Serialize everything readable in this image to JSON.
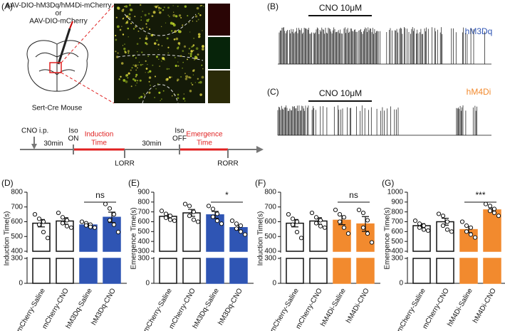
{
  "panel_a": {
    "label": "(A)",
    "virus_line1": "AAV-DIO-hM3Dq/hM4Di-mCherry",
    "virus_or": "or",
    "virus_line2": "AAV-DIO-mCherry",
    "mouse": "Sert-Cre Mouse",
    "timeline": {
      "cno": "CNO i.p.",
      "gap1": "30min",
      "iso_on_1": "Iso",
      "iso_on_2": "ON",
      "induction_1": "Induction",
      "induction_2": "Time",
      "lorr": "LORR",
      "gap2": "30min",
      "iso_off_1": "Iso",
      "iso_off_2": "OFF",
      "emergence_1": "Emergence",
      "emergence_2": "Time",
      "rorr": "RORR"
    }
  },
  "panel_b": {
    "label": "(B)",
    "drug": "CNO 10μM",
    "construct": "hM3Dq"
  },
  "panel_c": {
    "label": "(C)",
    "drug": "CNO 10μM",
    "construct": "hM4Di"
  },
  "chart_data": [
    {
      "type": "bar",
      "panel": "(D)",
      "ylabel": "Induction Time(s)",
      "categories": [
        "mCherry-Saline",
        "mCherry-CNO",
        "hM3Dq-Saline",
        "hM3Dq-CNO"
      ],
      "values": [
        590,
        605,
        578,
        630
      ],
      "errors": [
        25,
        22,
        10,
        35
      ],
      "colors": [
        "#ffffff",
        "#ffffff",
        "#2f55b4",
        "#2f55b4"
      ],
      "points": [
        [
          650,
          620,
          600,
          580,
          530,
          490
        ],
        [
          660,
          630,
          610,
          590,
          570,
          560
        ],
        [
          600,
          590,
          580,
          575,
          565,
          560
        ],
        [
          720,
          690,
          650,
          610,
          580,
          530
        ]
      ],
      "ylim": [
        400,
        800
      ],
      "yticks": [
        400,
        500,
        600,
        700,
        800
      ],
      "ylim_lower": [
        0,
        300
      ],
      "yticks_lower": [
        0,
        300
      ],
      "significance": "ns"
    },
    {
      "type": "bar",
      "panel": "(E)",
      "ylabel": "Emergence Time(s)",
      "categories": [
        "mCherry-Saline",
        "mCherry-CNO",
        "hM3Dq-Saline",
        "hM3Dq-CNO"
      ],
      "values": [
        655,
        690,
        670,
        540
      ],
      "errors": [
        20,
        35,
        35,
        25
      ],
      "colors": [
        "#ffffff",
        "#ffffff",
        "#2f55b4",
        "#2f55b4"
      ],
      "points": [
        [
          710,
          680,
          660,
          640,
          620,
          610
        ],
        [
          780,
          760,
          700,
          660,
          620,
          600
        ],
        [
          760,
          730,
          680,
          650,
          610,
          580
        ],
        [
          610,
          580,
          560,
          530,
          500,
          470
        ]
      ],
      "ylim": [
        300,
        900
      ],
      "yticks": [
        300,
        400,
        500,
        600,
        700,
        800,
        900
      ],
      "ylim_lower": [
        0,
        300
      ],
      "yticks_lower": [
        0,
        300
      ],
      "significance": "*"
    },
    {
      "type": "bar",
      "panel": "(F)",
      "ylabel": "Induction Time(s)",
      "categories": [
        "mCherry-Saline",
        "mCherry-CNO",
        "hM4Di-Saline",
        "hM4Di-CNO"
      ],
      "values": [
        590,
        605,
        610,
        585
      ],
      "errors": [
        25,
        22,
        30,
        50
      ],
      "colors": [
        "#ffffff",
        "#ffffff",
        "#f28a2e",
        "#f28a2e"
      ],
      "points": [
        [
          650,
          620,
          600,
          580,
          530,
          490
        ],
        [
          660,
          630,
          610,
          590,
          570,
          560
        ],
        [
          680,
          650,
          630,
          600,
          560,
          520
        ],
        [
          680,
          660,
          610,
          560,
          520,
          460
        ]
      ],
      "ylim": [
        400,
        800
      ],
      "yticks": [
        400,
        500,
        600,
        700,
        800
      ],
      "ylim_lower": [
        0,
        300
      ],
      "yticks_lower": [
        0,
        300
      ],
      "significance": "ns"
    },
    {
      "type": "bar",
      "panel": "(G)",
      "ylabel": "Emergence Time(s)",
      "categories": [
        "mCherry-Saline",
        "mCherry-CNO",
        "hM4Di-Saline",
        "hM4Di-CNO"
      ],
      "values": [
        660,
        700,
        620,
        820
      ],
      "errors": [
        20,
        35,
        30,
        20
      ],
      "colors": [
        "#ffffff",
        "#ffffff",
        "#f28a2e",
        "#f28a2e"
      ],
      "points": [
        [
          710,
          680,
          660,
          640,
          620,
          610
        ],
        [
          780,
          760,
          700,
          660,
          620,
          600
        ],
        [
          700,
          660,
          640,
          600,
          570,
          540
        ],
        [
          880,
          860,
          830,
          810,
          790,
          760
        ]
      ],
      "ylim": [
        400,
        1000
      ],
      "yticks": [
        400,
        500,
        600,
        700,
        800,
        900,
        1000
      ],
      "ylim_lower": [
        0,
        300
      ],
      "yticks_lower": [
        0,
        300
      ],
      "significance": "***"
    }
  ]
}
